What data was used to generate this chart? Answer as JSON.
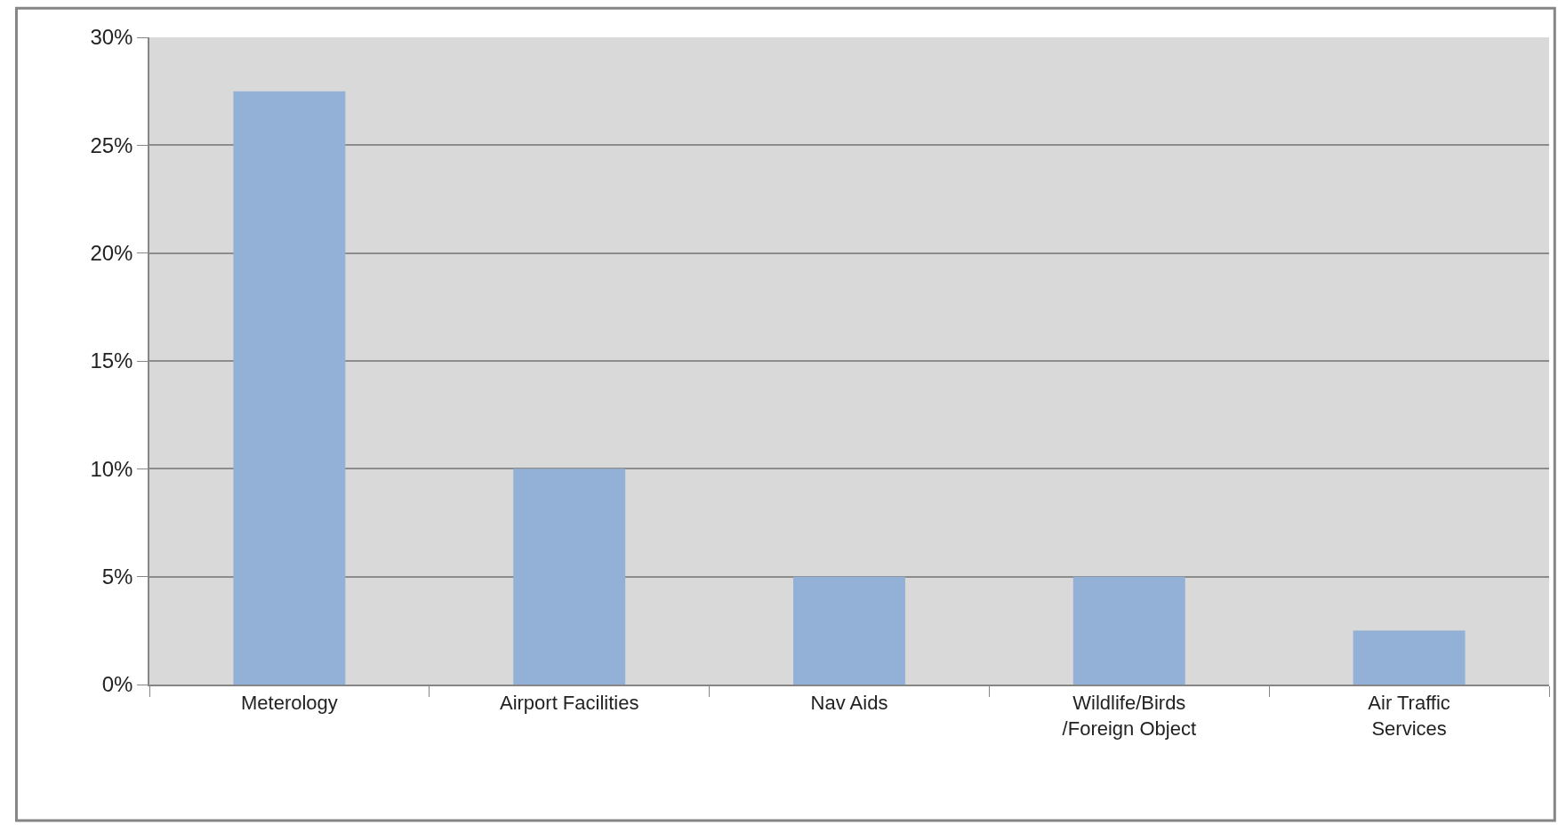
{
  "chart_data": {
    "type": "bar",
    "categories": [
      "Meterology",
      "Airport Facilities",
      "Nav Aids",
      "Wildlife/Birds\n/Foreign Object",
      "Air Traffic\nServices"
    ],
    "values": [
      27.5,
      10,
      5,
      5,
      2.5
    ],
    "color": "#93b1d6",
    "ylim": [
      0,
      30
    ],
    "yticks": [
      {
        "value": 0,
        "label": "0%"
      },
      {
        "value": 5,
        "label": "5%"
      },
      {
        "value": 10,
        "label": "10%"
      },
      {
        "value": 15,
        "label": "15%"
      },
      {
        "value": 20,
        "label": "20%"
      },
      {
        "value": 25,
        "label": "25%"
      },
      {
        "value": 30,
        "label": "30%"
      }
    ],
    "grid": "y",
    "legend": false
  }
}
